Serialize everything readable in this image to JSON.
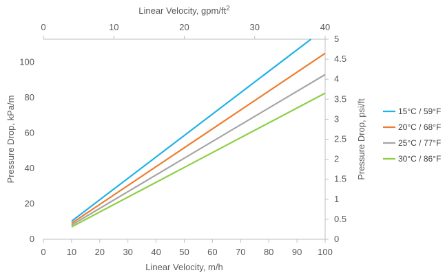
{
  "chart_data": {
    "type": "line",
    "xlabel": "Linear Velocity, m/h",
    "ylabel": "Pressure Drop, kPa/m",
    "x2label": "Linear Velocity, gpm/ft²",
    "y2label": "Pressure Drop, psi/ft",
    "xlim": [
      0,
      100
    ],
    "ylim": [
      0,
      113
    ],
    "x2lim": [
      0,
      40
    ],
    "y2lim": [
      0,
      5
    ],
    "xticks": [
      0,
      10,
      20,
      30,
      40,
      50,
      60,
      70,
      80,
      90,
      100
    ],
    "yticks": [
      0,
      20,
      40,
      60,
      80,
      100
    ],
    "x2ticks": [
      0,
      10,
      20,
      30,
      40
    ],
    "y2ticks": [
      0,
      0.5,
      1,
      1.5,
      2,
      2.5,
      3,
      3.5,
      4,
      4.5,
      5
    ],
    "legend_position": "right",
    "grid": false,
    "series": [
      {
        "name": "15°C / 59°F",
        "color": "#1fb2e6",
        "x": [
          10,
          95
        ],
        "y": [
          10.2,
          113
        ]
      },
      {
        "name": "20°C / 68°F",
        "color": "#ed7d31",
        "x": [
          10,
          100
        ],
        "y": [
          9.0,
          105
        ]
      },
      {
        "name": "25°C / 77°F",
        "color": "#a5a5a5",
        "x": [
          10,
          100
        ],
        "y": [
          8.0,
          93
        ]
      },
      {
        "name": "30°C / 86°F",
        "color": "#8ccf44",
        "x": [
          10,
          100
        ],
        "y": [
          7.0,
          82.5
        ]
      }
    ]
  }
}
